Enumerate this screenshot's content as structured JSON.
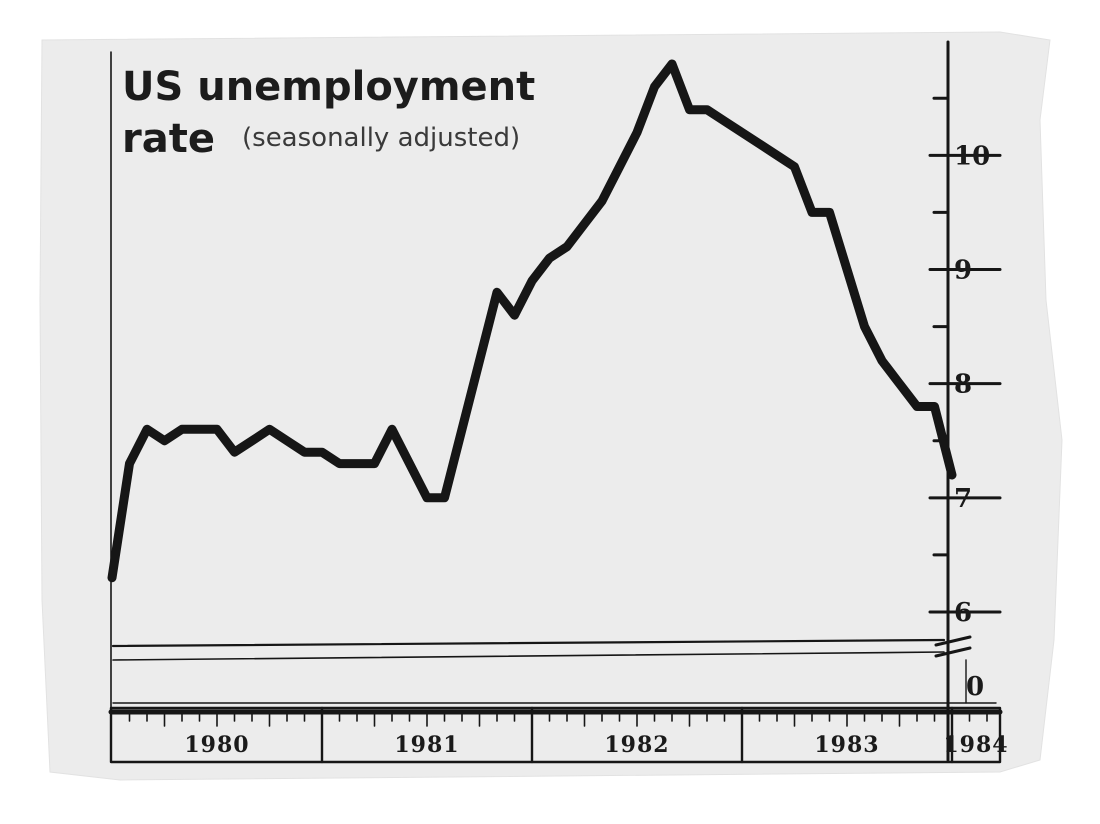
{
  "chart_data": {
    "type": "line",
    "title": "US unemployment",
    "title_line2": "rate",
    "subtitle": "(seasonally adjusted)",
    "x_categories": [
      "1980",
      "1981",
      "1982",
      "1983",
      "1984"
    ],
    "y_axis_side": "right",
    "y_break": true,
    "ylim": [
      6,
      10.8
    ],
    "y_ticks_major": [
      6,
      7,
      8,
      9,
      10
    ],
    "y_ticks_major_labels": [
      "6",
      "7",
      "8",
      "9",
      "10"
    ],
    "y_ticks_minor": [
      6.5,
      7.5,
      8.5,
      9.5,
      10.5
    ],
    "y_zero_label": "0",
    "x_start": "1980-01",
    "series": [
      {
        "x": [
          "1980-01",
          "1980-02",
          "1980-03",
          "1980-04",
          "1980-05",
          "1980-06",
          "1980-07",
          "1980-08",
          "1980-09",
          "1980-10",
          "1980-11",
          "1980-12",
          "1981-01",
          "1981-02",
          "1981-03",
          "1981-04",
          "1981-05",
          "1981-06",
          "1981-07",
          "1981-08",
          "1981-09",
          "1981-10",
          "1981-11",
          "1981-12",
          "1982-01",
          "1982-02",
          "1982-03",
          "1982-04",
          "1982-05",
          "1982-06",
          "1982-07",
          "1982-08",
          "1982-09",
          "1982-10",
          "1982-11",
          "1982-12",
          "1983-01",
          "1983-02",
          "1983-03",
          "1983-04",
          "1983-05",
          "1983-06",
          "1983-07",
          "1983-08",
          "1983-09",
          "1983-10",
          "1983-11",
          "1983-12",
          "1984-01"
        ],
        "values": [
          6.3,
          7.3,
          7.6,
          7.5,
          7.6,
          7.6,
          7.6,
          7.4,
          7.5,
          7.6,
          7.5,
          7.4,
          7.4,
          7.3,
          7.3,
          7.3,
          7.6,
          7.3,
          7.0,
          7.0,
          7.6,
          8.2,
          8.8,
          8.6,
          8.9,
          9.1,
          9.2,
          9.4,
          9.6,
          9.9,
          10.2,
          10.6,
          10.8,
          10.4,
          10.4,
          10.3,
          10.2,
          10.1,
          10.0,
          9.9,
          9.5,
          9.5,
          9.0,
          8.5,
          8.2,
          8.0,
          7.8,
          7.8,
          7.2
        ]
      }
    ]
  }
}
